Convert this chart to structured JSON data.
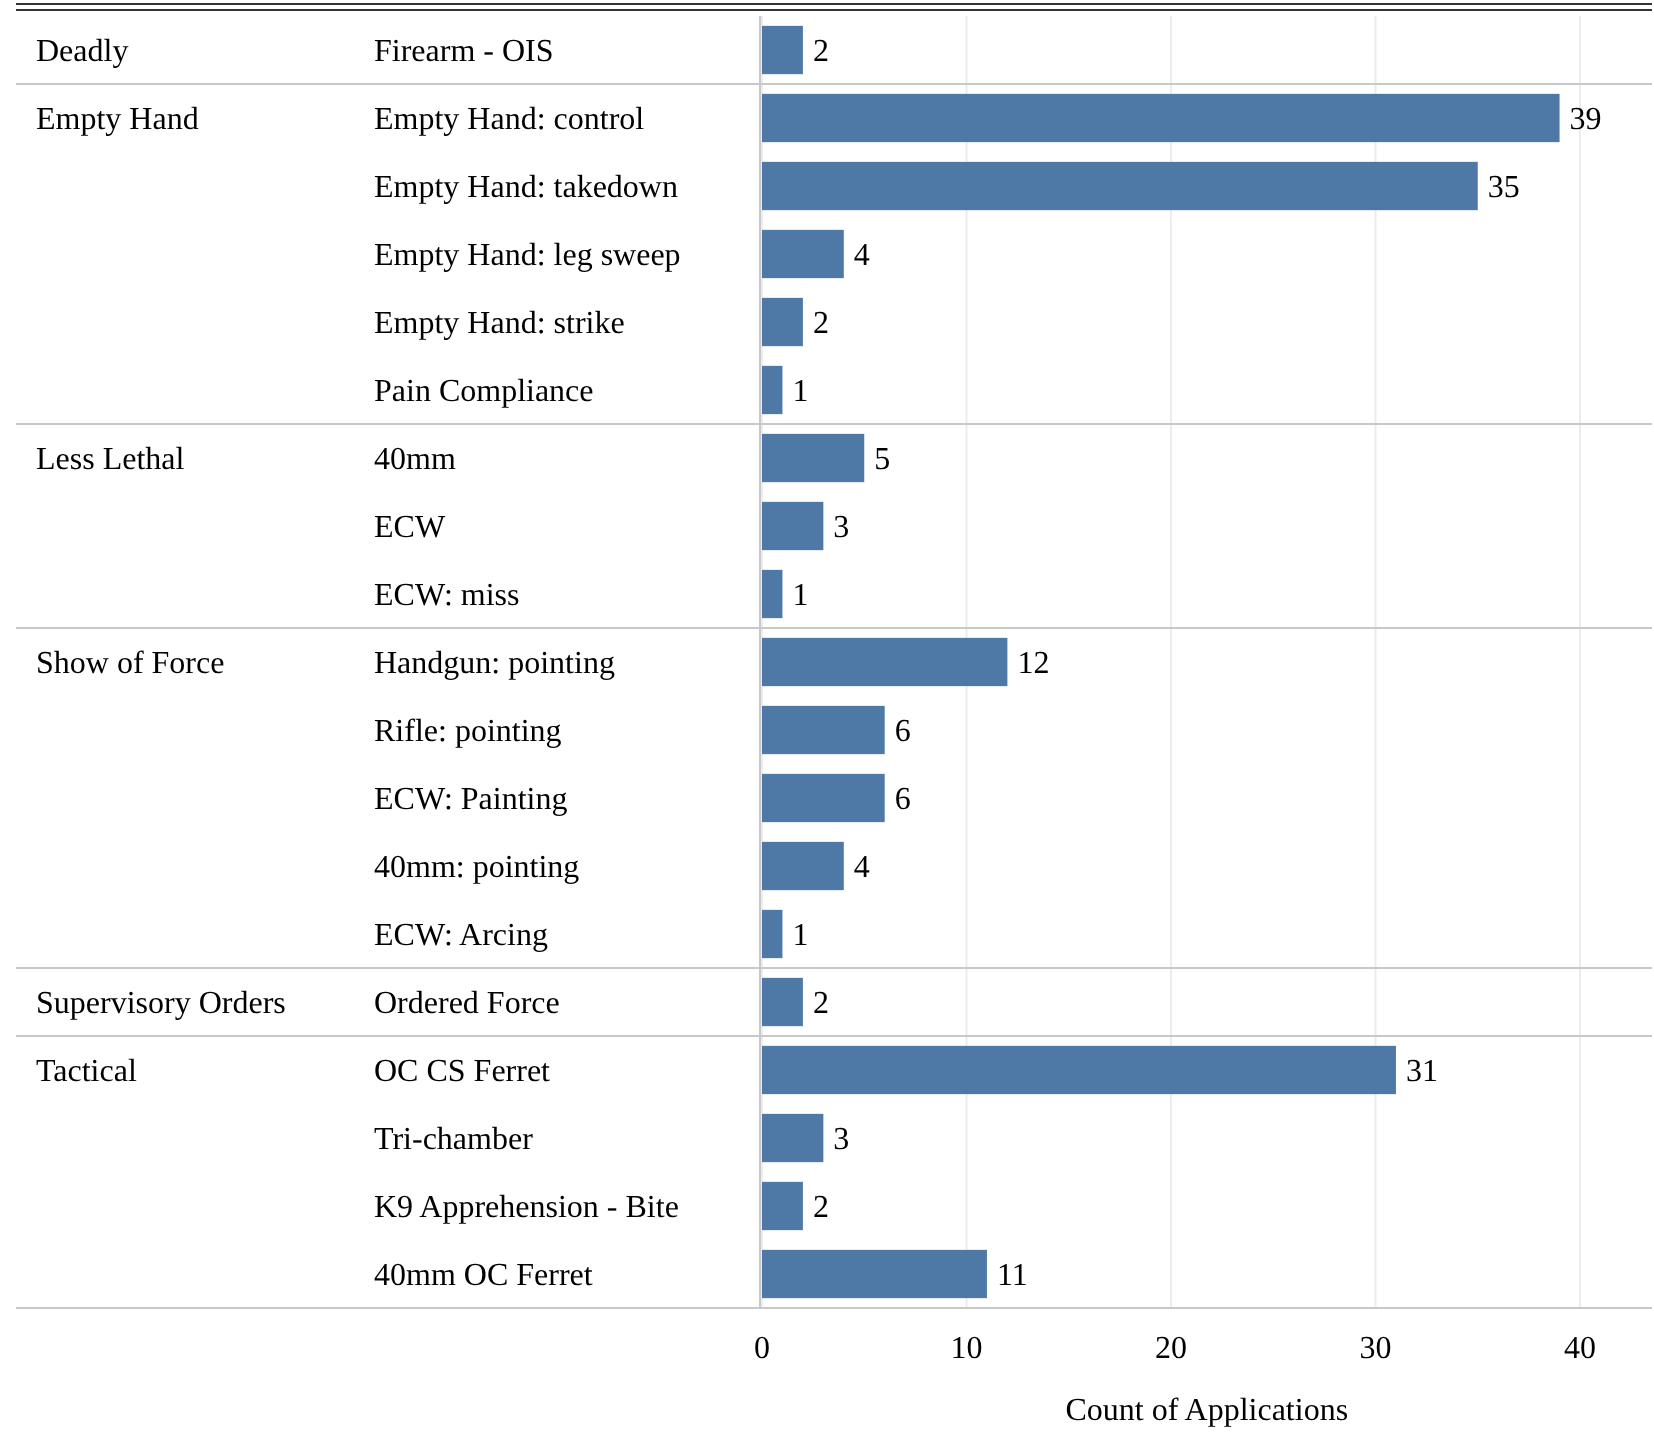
{
  "chart_data": {
    "type": "bar",
    "orientation": "horizontal",
    "xlabel": "Count of Applications",
    "categories": [
      "Firearm - OIS",
      "Empty Hand: control",
      "Empty Hand: takedown",
      "Empty Hand: leg sweep",
      "Empty Hand: strike",
      "Pain Compliance",
      "40mm",
      "ECW",
      "ECW: miss",
      "Handgun: pointing",
      "Rifle: pointing",
      "ECW: Painting",
      "40mm: pointing",
      "ECW: Arcing",
      "Ordered Force",
      "OC CS Ferret",
      "Tri-chamber",
      "K9 Apprehension - Bite",
      "40mm OC Ferret"
    ],
    "values": [
      2,
      39,
      35,
      4,
      2,
      1,
      5,
      3,
      1,
      12,
      6,
      6,
      4,
      1,
      2,
      31,
      3,
      2,
      11
    ],
    "y2_categories": [
      "Deadly",
      "Empty Hand",
      null,
      null,
      null,
      null,
      "Less Lethal",
      null,
      null,
      "Show of Force",
      null,
      null,
      null,
      null,
      "Supervisory Orders",
      "Tactical",
      null,
      null,
      null
    ],
    "color": "#4e79a7",
    "data_labels": true,
    "xlim": [
      0,
      43.5
    ],
    "xticks": [
      0,
      10,
      20,
      30,
      40
    ],
    "grid": "x"
  }
}
